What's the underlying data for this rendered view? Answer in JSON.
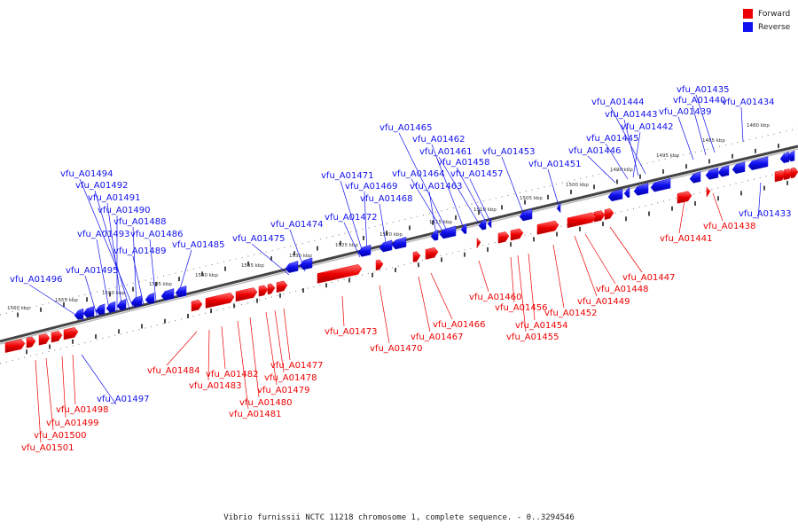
{
  "legend": {
    "forward_label": "Forward",
    "reverse_label": "Reverse",
    "forward_color": "#ee0000",
    "reverse_color": "#1010ee"
  },
  "caption": "Vibrio furnissii NCTC 11218 chromosome 1, complete sequence. - 0..3294546",
  "scale_labels": [
    "1480 kbp",
    "1485 kbp",
    "1490 kbp",
    "1495 kbp",
    "1500 kbp",
    "1505 kbp",
    "1510 kbp",
    "1515 kbp",
    "1520 kbp",
    "1525 kbp",
    "1530 kbp",
    "1535 kbp",
    "1540 kbp",
    "1545 kbp",
    "1550 kbp",
    "1555 kbp",
    "1560 kbp"
  ],
  "reverse_genes": [
    "vfu_A01434",
    "vfu_A01435",
    "vfu_A01440",
    "vfu_A01439",
    "vfu_A01444",
    "vfu_A01443",
    "vfu_A01442",
    "vfu_A01445",
    "vfu_A01446",
    "vfu_A01451",
    "vfu_A01453",
    "vfu_A01465",
    "vfu_A01462",
    "vfu_A01461",
    "vfu_A01458",
    "vfu_A01457",
    "vfu_A01464",
    "vfu_A01463",
    "vfu_A01471",
    "vfu_A01469",
    "vfu_A01468",
    "vfu_A01472",
    "vfu_A01474",
    "vfu_A01475",
    "vfu_A01485",
    "vfu_A01494",
    "vfu_A01492",
    "vfu_A01491",
    "vfu_A01490",
    "vfu_A01488",
    "vfu_A01493",
    "vfu_A01486",
    "vfu_A01489",
    "vfu_A01495",
    "vfu_A01496",
    "vfu_A01497",
    "vfu_A01433"
  ],
  "forward_genes": [
    "vfu_A01441",
    "vfu_A01438",
    "vfu_A01447",
    "vfu_A01448",
    "vfu_A01449",
    "vfu_A01452",
    "vfu_A01454",
    "vfu_A01455",
    "vfu_A01456",
    "vfu_A01460",
    "vfu_A01466",
    "vfu_A01467",
    "vfu_A01470",
    "vfu_A01473",
    "vfu_A01477",
    "vfu_A01478",
    "vfu_A01479",
    "vfu_A01480",
    "vfu_A01481",
    "vfu_A01482",
    "vfu_A01483",
    "vfu_A01484",
    "vfu_A01498",
    "vfu_A01499",
    "vfu_A01500",
    "vfu_A01501"
  ]
}
